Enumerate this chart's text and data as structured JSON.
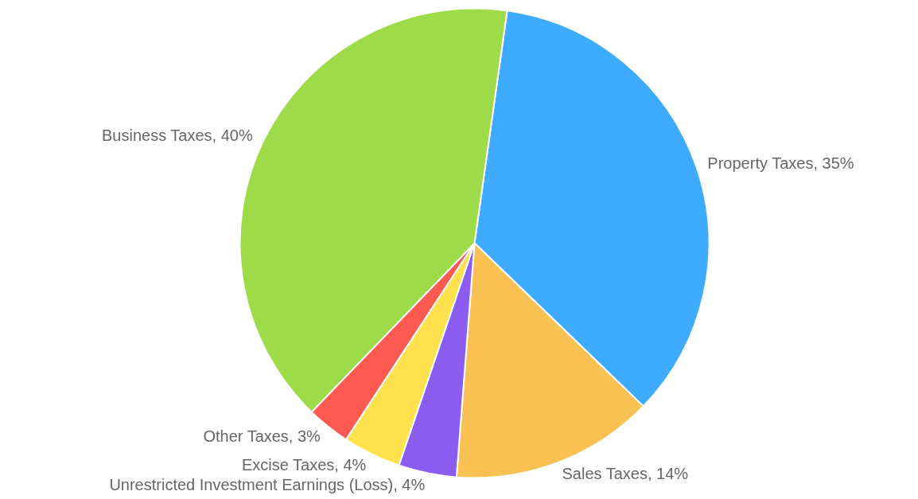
{
  "chart_data": {
    "type": "pie",
    "categories": [
      "Property Taxes",
      "Sales Taxes",
      "Unrestricted Investment Earnings (Loss)",
      "Excise Taxes",
      "Other Taxes",
      "Business Taxes"
    ],
    "values": [
      35,
      14,
      4,
      4,
      3,
      40
    ],
    "value_labels": [
      "35%",
      "14%",
      "4%",
      "4%",
      "3%",
      "40%"
    ],
    "colors": [
      "#3fabff",
      "#f9c152",
      "#8b5cf0",
      "#ffe14d",
      "#ff5a52",
      "#9edb48"
    ]
  }
}
